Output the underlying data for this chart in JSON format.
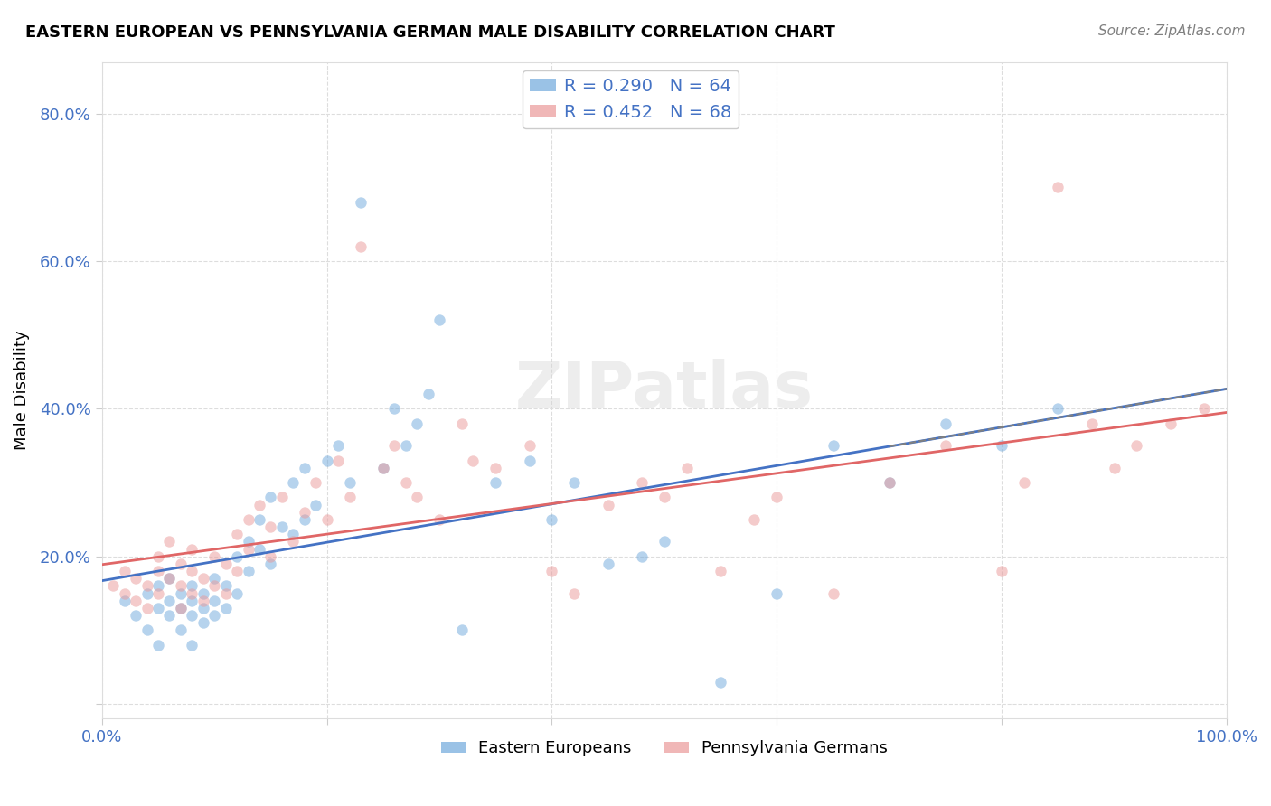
{
  "title": "EASTERN EUROPEAN VS PENNSYLVANIA GERMAN MALE DISABILITY CORRELATION CHART",
  "source": "Source: ZipAtlas.com",
  "xlabel": "",
  "ylabel": "Male Disability",
  "xlim": [
    0.0,
    1.0
  ],
  "ylim": [
    -0.02,
    0.87
  ],
  "x_ticks": [
    0.0,
    0.2,
    0.4,
    0.6,
    0.8,
    1.0
  ],
  "x_tick_labels": [
    "0.0%",
    "",
    "",
    "",
    "",
    "100.0%"
  ],
  "y_ticks": [
    0.0,
    0.2,
    0.4,
    0.6,
    0.8
  ],
  "y_tick_labels": [
    "",
    "20.0%",
    "40.0%",
    "60.0%",
    "80.0%"
  ],
  "blue_color": "#6fa8dc",
  "pink_color": "#ea9999",
  "blue_line_color": "#4472c4",
  "pink_line_color": "#e06666",
  "legend_blue_R": "R = 0.290",
  "legend_blue_N": "N = 64",
  "legend_pink_R": "R = 0.452",
  "legend_pink_N": "N = 68",
  "watermark": "ZIPatlas",
  "blue_scatter_x": [
    0.02,
    0.03,
    0.04,
    0.04,
    0.05,
    0.05,
    0.05,
    0.06,
    0.06,
    0.06,
    0.07,
    0.07,
    0.07,
    0.08,
    0.08,
    0.08,
    0.08,
    0.09,
    0.09,
    0.09,
    0.1,
    0.1,
    0.1,
    0.11,
    0.11,
    0.12,
    0.12,
    0.13,
    0.13,
    0.14,
    0.14,
    0.15,
    0.15,
    0.16,
    0.17,
    0.17,
    0.18,
    0.18,
    0.19,
    0.2,
    0.21,
    0.22,
    0.23,
    0.25,
    0.26,
    0.27,
    0.28,
    0.29,
    0.3,
    0.32,
    0.35,
    0.38,
    0.4,
    0.42,
    0.45,
    0.48,
    0.5,
    0.55,
    0.6,
    0.65,
    0.7,
    0.75,
    0.8,
    0.85
  ],
  "blue_scatter_y": [
    0.14,
    0.12,
    0.1,
    0.15,
    0.13,
    0.16,
    0.08,
    0.14,
    0.12,
    0.17,
    0.15,
    0.13,
    0.1,
    0.16,
    0.14,
    0.12,
    0.08,
    0.15,
    0.13,
    0.11,
    0.17,
    0.14,
    0.12,
    0.16,
    0.13,
    0.2,
    0.15,
    0.22,
    0.18,
    0.25,
    0.21,
    0.28,
    0.19,
    0.24,
    0.3,
    0.23,
    0.32,
    0.25,
    0.27,
    0.33,
    0.35,
    0.3,
    0.68,
    0.32,
    0.4,
    0.35,
    0.38,
    0.42,
    0.52,
    0.1,
    0.3,
    0.33,
    0.25,
    0.3,
    0.19,
    0.2,
    0.22,
    0.03,
    0.15,
    0.35,
    0.3,
    0.38,
    0.35,
    0.4
  ],
  "pink_scatter_x": [
    0.01,
    0.02,
    0.02,
    0.03,
    0.03,
    0.04,
    0.04,
    0.05,
    0.05,
    0.05,
    0.06,
    0.06,
    0.07,
    0.07,
    0.07,
    0.08,
    0.08,
    0.08,
    0.09,
    0.09,
    0.1,
    0.1,
    0.11,
    0.11,
    0.12,
    0.12,
    0.13,
    0.13,
    0.14,
    0.15,
    0.15,
    0.16,
    0.17,
    0.18,
    0.19,
    0.2,
    0.21,
    0.22,
    0.23,
    0.25,
    0.26,
    0.27,
    0.28,
    0.3,
    0.32,
    0.33,
    0.35,
    0.38,
    0.4,
    0.42,
    0.45,
    0.48,
    0.5,
    0.52,
    0.55,
    0.58,
    0.6,
    0.65,
    0.7,
    0.75,
    0.8,
    0.82,
    0.85,
    0.88,
    0.9,
    0.92,
    0.95,
    0.98
  ],
  "pink_scatter_y": [
    0.16,
    0.15,
    0.18,
    0.14,
    0.17,
    0.16,
    0.13,
    0.15,
    0.18,
    0.2,
    0.17,
    0.22,
    0.19,
    0.16,
    0.13,
    0.18,
    0.15,
    0.21,
    0.17,
    0.14,
    0.2,
    0.16,
    0.19,
    0.15,
    0.23,
    0.18,
    0.25,
    0.21,
    0.27,
    0.24,
    0.2,
    0.28,
    0.22,
    0.26,
    0.3,
    0.25,
    0.33,
    0.28,
    0.62,
    0.32,
    0.35,
    0.3,
    0.28,
    0.25,
    0.38,
    0.33,
    0.32,
    0.35,
    0.18,
    0.15,
    0.27,
    0.3,
    0.28,
    0.32,
    0.18,
    0.25,
    0.28,
    0.15,
    0.3,
    0.35,
    0.18,
    0.3,
    0.7,
    0.38,
    0.32,
    0.35,
    0.38,
    0.4
  ]
}
